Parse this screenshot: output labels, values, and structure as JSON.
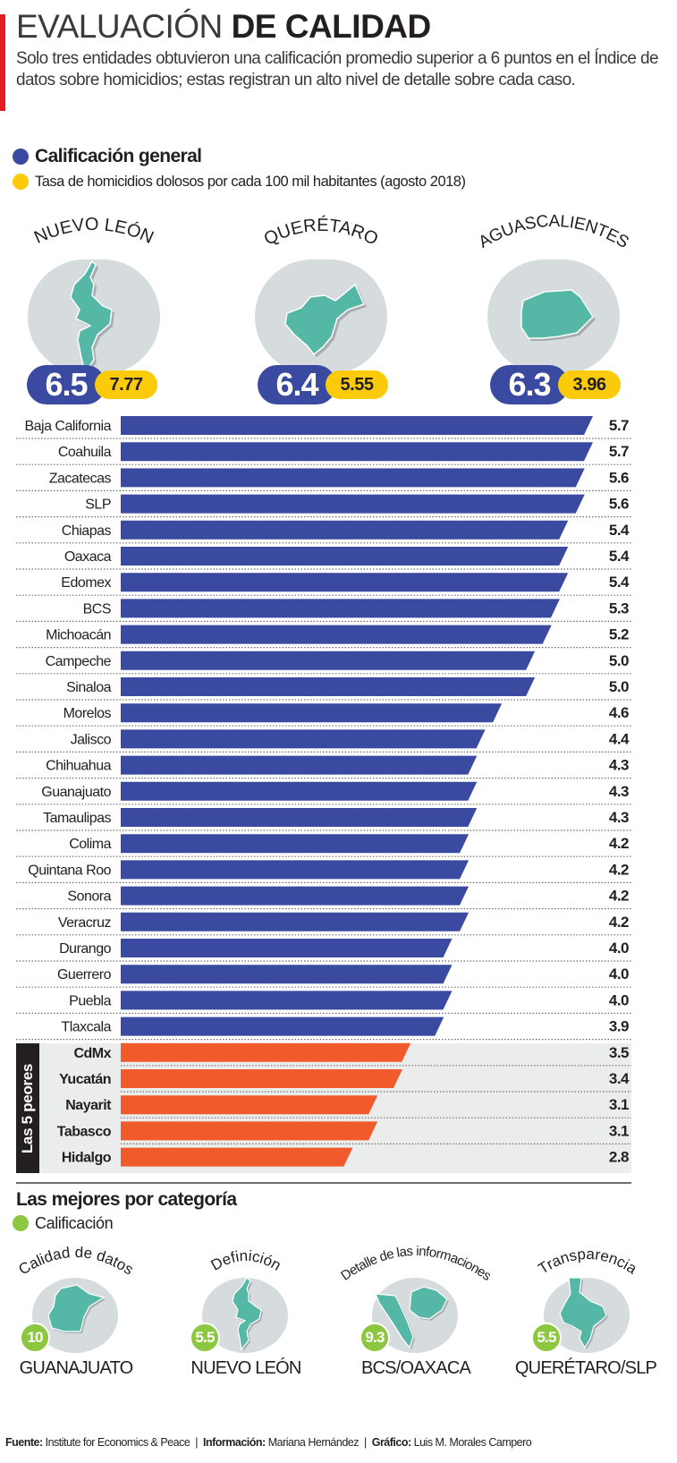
{
  "header": {
    "title_light": "EVALUACIÓN",
    "title_bold": "DE CALIDAD",
    "subtitle": "Solo tres entidades obtuvieron una calificación promedio superior a 6 puntos en el Índice de datos sobre homicidios; estas registran un alto nivel de detalle sobre cada caso."
  },
  "legend": {
    "general": {
      "label": "Calificación general",
      "color": "#3a4aa0"
    },
    "rate": {
      "label": "Tasa de homicidios dolosos por cada 100 mil habitantes (agosto 2018)",
      "color": "#fbcb0a"
    }
  },
  "top_states": [
    {
      "name": "NUEVO LEÓN",
      "score": "6.5",
      "rate": "7.77",
      "map_icon": "nuevo-leon-map"
    },
    {
      "name": "QUERÉTARO",
      "score": "6.4",
      "rate": "5.55",
      "map_icon": "queretaro-map"
    },
    {
      "name": "AGUASCALIENTES",
      "score": "6.3",
      "rate": "3.96",
      "map_icon": "aguascalientes-map"
    }
  ],
  "chart_data": {
    "type": "bar",
    "orientation": "horizontal",
    "title": "Calificación general",
    "xlabel": "",
    "ylabel": "",
    "xlim": [
      0,
      6
    ],
    "grid": false,
    "categories": [
      "Baja California",
      "Coahuila",
      "Zacatecas",
      "SLP",
      "Chiapas",
      "Oaxaca",
      "Edomex",
      "BCS",
      "Michoacán",
      "Campeche",
      "Sinaloa",
      "Morelos",
      "Jalisco",
      "Chihuahua",
      "Guanajuato",
      "Tamaulipas",
      "Colima",
      "Quintana  Roo",
      "Sonora",
      "Veracruz",
      "Durango",
      "Guerrero",
      "Puebla",
      "Tlaxcala",
      "CdMx",
      "Yucatán",
      "Nayarit",
      "Tabasco",
      "Hidalgo"
    ],
    "values": [
      5.7,
      5.7,
      5.6,
      5.6,
      5.4,
      5.4,
      5.4,
      5.3,
      5.2,
      5.0,
      5.0,
      4.6,
      4.4,
      4.3,
      4.3,
      4.3,
      4.2,
      4.2,
      4.2,
      4.2,
      4.0,
      4.0,
      4.0,
      3.9,
      3.5,
      3.4,
      3.1,
      3.1,
      2.8
    ],
    "labels": [
      "5.7",
      "5.7",
      "5.6",
      "5.6",
      "5.4",
      "5.4",
      "5.4",
      "5.3",
      "5.2",
      "5.0",
      "5.0",
      "4.6",
      "4.4",
      "4.3",
      "4.3",
      "4.3",
      "4.2",
      "4.2",
      "4.2",
      "4.2",
      "4.0",
      "4.0",
      "4.0",
      "3.9",
      "3.5",
      "3.4",
      "3.1",
      "3.1",
      "2.8"
    ],
    "worst_count": 5,
    "worst_group_label": "Las 5 peores",
    "colors": {
      "regular": "#3a4aa0",
      "worst": "#f15a2b"
    }
  },
  "best_by_category": {
    "title": "Las mejores por categoría",
    "legend_label": "Calificación",
    "legend_color": "#8dc63f",
    "items": [
      {
        "category": "Calidad de datos",
        "score": "10",
        "state": "GUANAJUATO",
        "map_icon": "guanajuato-map"
      },
      {
        "category": "Definición",
        "score": "5.5",
        "state": "NUEVO LEÓN",
        "map_icon": "nuevo-leon-map"
      },
      {
        "category": "Detalle de las informaciones",
        "score": "9.3",
        "state": "BCS/OAXACA",
        "map_icon": "bcs-oaxaca-map"
      },
      {
        "category": "Transparencia",
        "score": "5.5",
        "state": "QUERÉTARO/SLP",
        "map_icon": "queretaro-slp-map"
      }
    ]
  },
  "footer": {
    "source_label": "Fuente:",
    "source": "Institute for Economics & Peace",
    "info_label": "Información:",
    "info": "Mariana Hernández",
    "graphic_label": "Gráfico:",
    "graphic": "Luis M. Morales Campero",
    "separator": "|"
  }
}
